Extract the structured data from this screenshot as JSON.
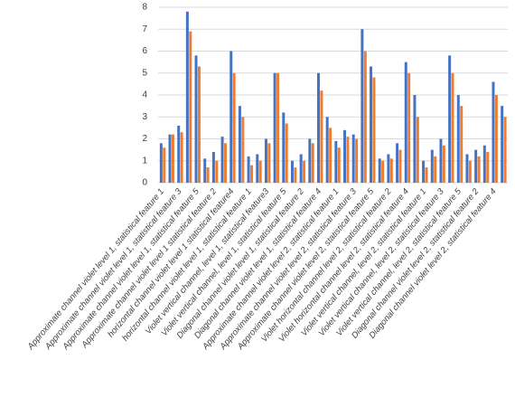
{
  "chart_data": {
    "type": "bar",
    "categories": [
      "Approximate channel violet level 1, statistical feature 1",
      null,
      "Approximate channel violet level 1, statistical feature 3",
      null,
      "Approximate channel violet level 1, statistical feature 5",
      null,
      "Approximate channel violet level 1 statistical feature 2",
      null,
      "horizontal channel violet level 1 statistical feature4",
      null,
      "horizontal channel violet level 1, statistical feature 1",
      null,
      "Violet vertical channel, level 1, statistical feature3",
      null,
      "Violet vertical channel, level 1, statistical feature 5",
      null,
      "Diagonal channel violet level 1, statistical feature 2",
      null,
      "Diagonal channel violet level 1, statistical feature 4",
      null,
      "Approximate channel violet level 2, statistical feature 1",
      null,
      "Approximate channel violet level 2, statistical feature 3",
      null,
      "Approximate channel violet level 2, statistical feature 5",
      null,
      "Violet horizontal channel level 2, statistical feature 2",
      null,
      "Violet horizontal channel level 2, statistical feature 4",
      null,
      "Violet vertical channel, level 2, statistical feature 1",
      null,
      "Violet vertical channel, level 2, statistical feature 3",
      null,
      "Violet vertical channel, level 2, statistical feature 5",
      null,
      "Diagonal channel violet level 2, statistical feature 2",
      null,
      "Diagonal channel violet level 2, statistical feature 4",
      null
    ],
    "series": [
      {
        "color": "#4472c4",
        "values": [
          1.8,
          2.2,
          2.6,
          7.8,
          5.8,
          1.1,
          1.4,
          2.1,
          6.0,
          3.5,
          1.2,
          1.3,
          2.0,
          5.0,
          3.2,
          1.0,
          1.3,
          2.0,
          5.0,
          3.0,
          1.9,
          2.4,
          2.2,
          7.0,
          5.3,
          1.1,
          1.3,
          1.8,
          5.5,
          4.0,
          1.0,
          1.5,
          2.0,
          5.8,
          4.0,
          1.3,
          1.5,
          1.7,
          4.6,
          3.5
        ]
      },
      {
        "color": "#ed7d31",
        "values": [
          1.6,
          2.2,
          2.3,
          6.9,
          5.3,
          0.7,
          1.0,
          1.8,
          5.0,
          3.0,
          0.8,
          1.0,
          1.8,
          5.0,
          2.7,
          0.7,
          1.0,
          1.8,
          4.2,
          2.5,
          1.6,
          2.1,
          2.0,
          6.0,
          4.8,
          1.0,
          1.1,
          1.5,
          5.0,
          3.0,
          0.7,
          1.2,
          1.7,
          5.0,
          3.5,
          1.0,
          1.2,
          1.4,
          4.0,
          3.0
        ]
      }
    ],
    "ylim": [
      0,
      8
    ],
    "yticks": [
      0,
      1,
      2,
      3,
      4,
      5,
      6,
      7,
      8
    ],
    "grid": true
  }
}
